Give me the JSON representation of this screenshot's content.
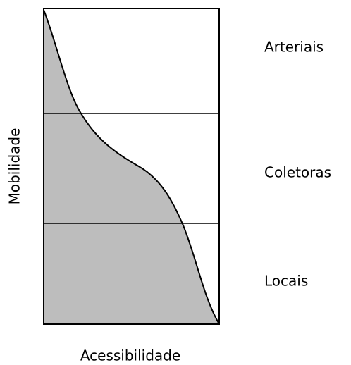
{
  "y_axis_label": "Mobilidade",
  "x_axis_label": "Acessibilidade",
  "bands": [
    {
      "label": "Arteriais"
    },
    {
      "label": "Coletoras"
    },
    {
      "label": "Locais"
    }
  ]
}
